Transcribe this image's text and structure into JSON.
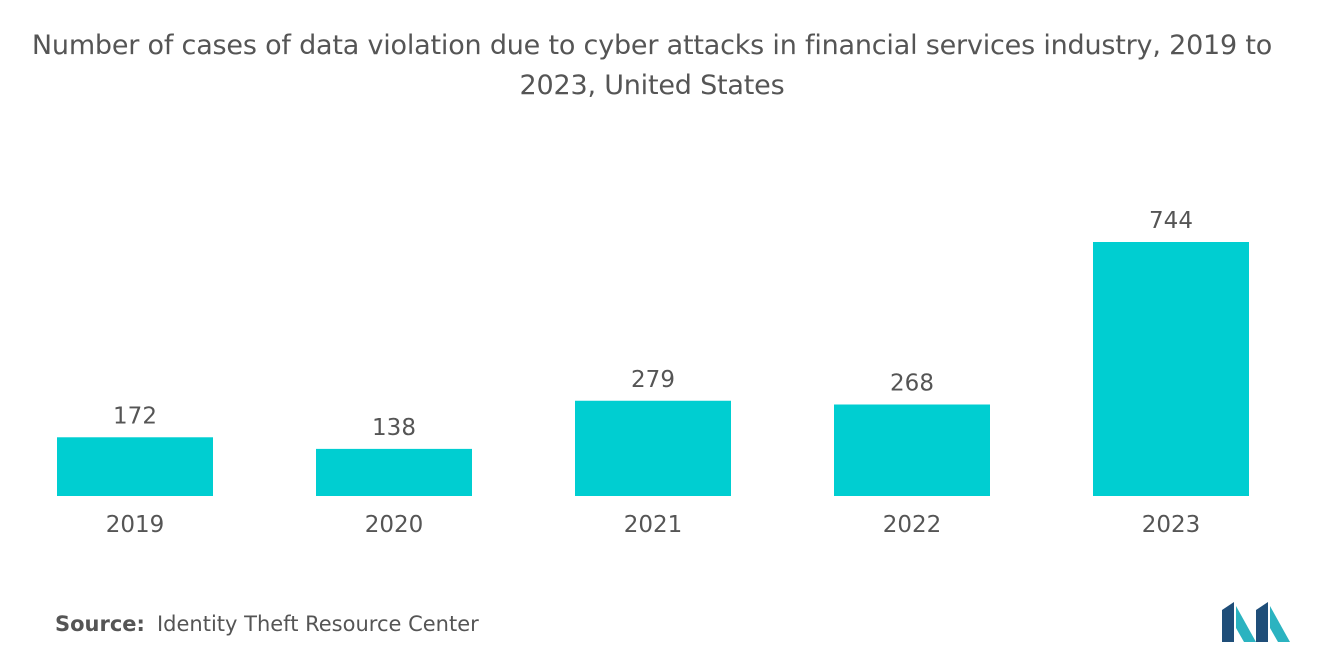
{
  "chart_data": {
    "type": "bar",
    "title": "Number of cases of data violation due to cyber attacks in financial services industry, 2019 to 2023, United States",
    "categories": [
      "2019",
      "2020",
      "2021",
      "2022",
      "2023"
    ],
    "values": [
      172,
      138,
      279,
      268,
      744
    ],
    "ylim": [
      0,
      744
    ],
    "grid": false,
    "bar_color": "#00CED1"
  },
  "footer": {
    "source_label": "Source:",
    "source_text": "Identity Theft Resource Center"
  },
  "colors": {
    "text": "#555555",
    "logo_dark": "#1F4E79",
    "logo_teal": "#2BB3C0"
  }
}
